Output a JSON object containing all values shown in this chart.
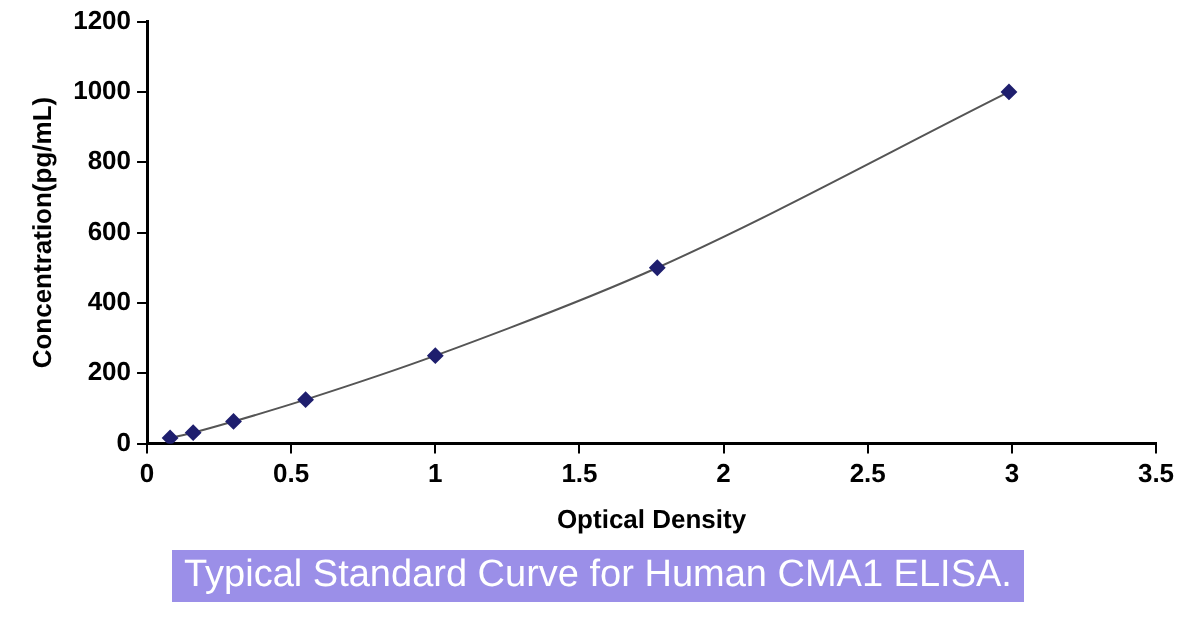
{
  "chart_data": {
    "type": "scatter",
    "xlabel": "Optical Density",
    "ylabel": "Concentration(pg/mL)",
    "annotations": [
      "Typical Standard Curve for Human CMA1 ELISA."
    ],
    "series": [
      {
        "type": "scatter",
        "color": "#1f1f6e",
        "marker": "diamond",
        "x": [
          0.08,
          0.16,
          0.3,
          0.55,
          1.0,
          1.77,
          2.99
        ],
        "values": [
          16,
          31,
          63,
          125,
          250,
          500,
          1000
        ]
      },
      {
        "type": "line",
        "color": "#555555",
        "marker": "none",
        "x": [
          0.08,
          0.16,
          0.3,
          0.55,
          1.0,
          1.77,
          2.99
        ],
        "values": [
          16,
          31,
          63,
          125,
          250,
          500,
          1000
        ]
      }
    ],
    "xlim": [
      0,
      3.5
    ],
    "xticks": [
      0,
      0.5,
      1,
      1.5,
      2,
      2.5,
      3,
      3.5
    ],
    "ylim": [
      0,
      1200
    ],
    "yticks": [
      0,
      200,
      400,
      600,
      800,
      1000,
      1200
    ],
    "grid": false,
    "legend": false
  }
}
